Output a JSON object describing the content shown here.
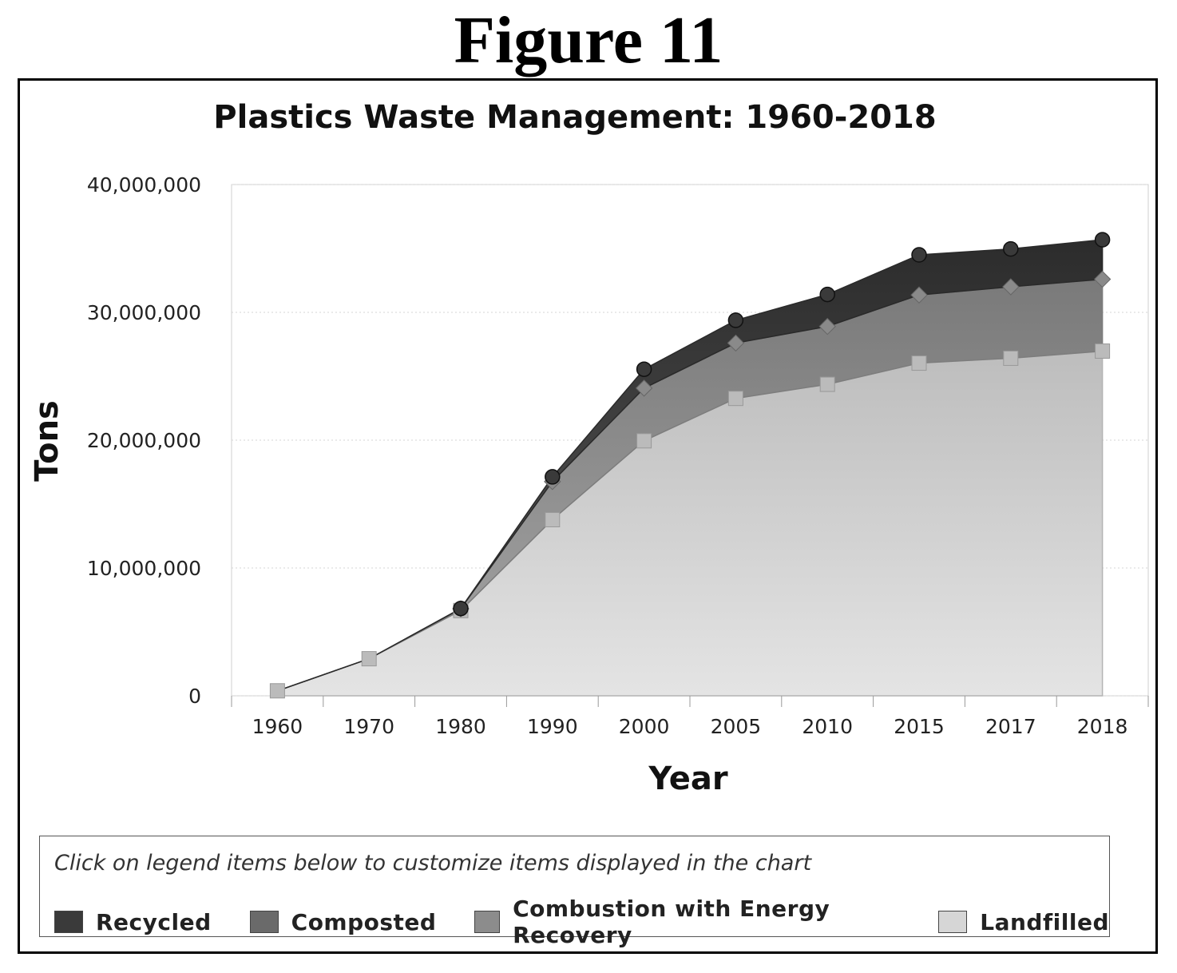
{
  "figure_label": "Figure 11",
  "legend": {
    "hint": "Click on legend items below to customize items displayed in the chart"
  },
  "colors": {
    "recycled": "#3a3a3a",
    "composted": "#6a6a6a",
    "combustion": "#8c8c8c",
    "landfilled": "#d6d6d6"
  },
  "chart_data": {
    "type": "area",
    "stacked": true,
    "title": "Plastics Waste Management: 1960-2018",
    "xlabel": "Year",
    "ylabel": "Tons",
    "ylim": [
      0,
      40000000
    ],
    "yticks": [
      "0",
      "10,000,000",
      "20,000,000",
      "30,000,000",
      "40,000,000"
    ],
    "ytick_values": [
      0,
      10000000,
      20000000,
      30000000,
      40000000
    ],
    "categories": [
      "1960",
      "1970",
      "1980",
      "1990",
      "2000",
      "2005",
      "2010",
      "2015",
      "2017",
      "2018"
    ],
    "grid": true,
    "legend_position": "bottom",
    "series": [
      {
        "name": "Landfilled",
        "values": [
          390000,
          2900000,
          6670000,
          13780000,
          19950000,
          23270000,
          24370000,
          26030000,
          26410000,
          26970000
        ]
      },
      {
        "name": "Combustion with Energy Recovery",
        "values": [
          0,
          0,
          140000,
          2980000,
          4120000,
          4330000,
          4530000,
          5330000,
          5590000,
          5620000
        ]
      },
      {
        "name": "Composted",
        "values": [
          0,
          0,
          0,
          0,
          0,
          0,
          0,
          0,
          0,
          0
        ]
      },
      {
        "name": "Recycled",
        "values": [
          0,
          0,
          20000,
          370000,
          1480000,
          1780000,
          2500000,
          3140000,
          2960000,
          3090000
        ]
      }
    ]
  }
}
